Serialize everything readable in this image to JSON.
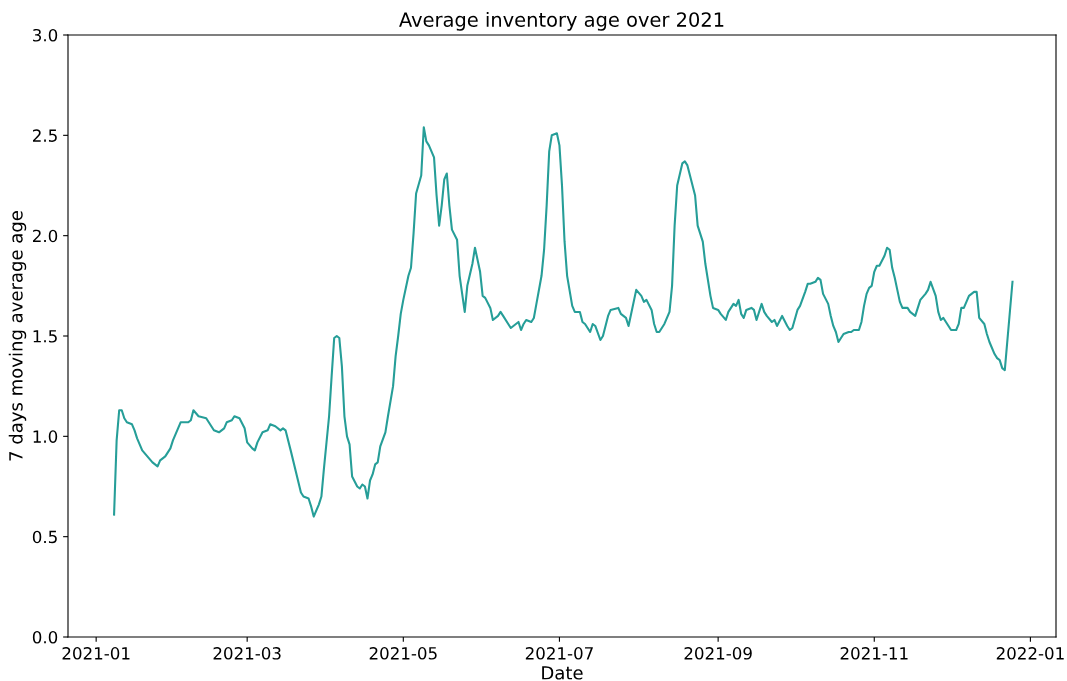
{
  "chart_data": {
    "type": "line",
    "title": "Average inventory age over 2021",
    "xlabel": "Date",
    "ylabel": "7 days moving average age",
    "x": [
      "2021-01-08",
      "2021-01-09",
      "2021-01-10",
      "2021-01-11",
      "2021-01-12",
      "2021-01-13",
      "2021-01-15",
      "2021-01-16",
      "2021-01-17",
      "2021-01-19",
      "2021-01-21",
      "2021-01-23",
      "2021-01-25",
      "2021-01-26",
      "2021-01-28",
      "2021-01-30",
      "2021-01-31",
      "2021-02-03",
      "2021-02-06",
      "2021-02-07",
      "2021-02-08",
      "2021-02-10",
      "2021-02-13",
      "2021-02-16",
      "2021-02-18",
      "2021-02-20",
      "2021-02-21",
      "2021-02-23",
      "2021-02-24",
      "2021-02-26",
      "2021-02-28",
      "2021-03-01",
      "2021-03-03",
      "2021-03-04",
      "2021-03-05",
      "2021-03-07",
      "2021-03-09",
      "2021-03-10",
      "2021-03-12",
      "2021-03-14",
      "2021-03-15",
      "2021-03-16",
      "2021-03-18",
      "2021-03-22",
      "2021-03-23",
      "2021-03-25",
      "2021-03-26",
      "2021-03-27",
      "2021-03-29",
      "2021-03-30",
      "2021-03-31",
      "2021-04-02",
      "2021-04-03",
      "2021-04-04",
      "2021-04-05",
      "2021-04-06",
      "2021-04-07",
      "2021-04-08",
      "2021-04-09",
      "2021-04-10",
      "2021-04-11",
      "2021-04-13",
      "2021-04-14",
      "2021-04-15",
      "2021-04-16",
      "2021-04-17",
      "2021-04-18",
      "2021-04-19",
      "2021-04-20",
      "2021-04-21",
      "2021-04-22",
      "2021-04-24",
      "2021-04-25",
      "2021-04-27",
      "2021-04-28",
      "2021-04-29",
      "2021-04-30",
      "2021-05-01",
      "2021-05-03",
      "2021-05-04",
      "2021-05-05",
      "2021-05-06",
      "2021-05-08",
      "2021-05-09",
      "2021-05-10",
      "2021-05-11",
      "2021-05-13",
      "2021-05-14",
      "2021-05-15",
      "2021-05-16",
      "2021-05-17",
      "2021-05-18",
      "2021-05-19",
      "2021-05-20",
      "2021-05-22",
      "2021-05-23",
      "2021-05-25",
      "2021-05-26",
      "2021-05-28",
      "2021-05-29",
      "2021-05-31",
      "2021-06-01",
      "2021-06-02",
      "2021-06-04",
      "2021-06-05",
      "2021-06-07",
      "2021-06-08",
      "2021-06-09",
      "2021-06-11",
      "2021-06-12",
      "2021-06-13",
      "2021-06-15",
      "2021-06-16",
      "2021-06-17",
      "2021-06-18",
      "2021-06-20",
      "2021-06-21",
      "2021-06-22",
      "2021-06-24",
      "2021-06-25",
      "2021-06-26",
      "2021-06-27",
      "2021-06-28",
      "2021-06-30",
      "2021-07-01",
      "2021-07-02",
      "2021-07-03",
      "2021-07-04",
      "2021-07-06",
      "2021-07-07",
      "2021-07-09",
      "2021-07-10",
      "2021-07-11",
      "2021-07-13",
      "2021-07-14",
      "2021-07-15",
      "2021-07-17",
      "2021-07-18",
      "2021-07-20",
      "2021-07-21",
      "2021-07-24",
      "2021-07-25",
      "2021-07-27",
      "2021-07-28",
      "2021-07-29",
      "2021-07-31",
      "2021-08-02",
      "2021-08-03",
      "2021-08-04",
      "2021-08-06",
      "2021-08-07",
      "2021-08-08",
      "2021-08-09",
      "2021-08-11",
      "2021-08-13",
      "2021-08-14",
      "2021-08-15",
      "2021-08-16",
      "2021-08-18",
      "2021-08-19",
      "2021-08-20",
      "2021-08-21",
      "2021-08-23",
      "2021-08-24",
      "2021-08-26",
      "2021-08-27",
      "2021-08-29",
      "2021-08-30",
      "2021-09-01",
      "2021-09-02",
      "2021-09-04",
      "2021-09-05",
      "2021-09-07",
      "2021-09-08",
      "2021-09-09",
      "2021-09-10",
      "2021-09-11",
      "2021-09-12",
      "2021-09-14",
      "2021-09-15",
      "2021-09-16",
      "2021-09-18",
      "2021-09-19",
      "2021-09-20",
      "2021-09-22",
      "2021-09-23",
      "2021-09-24",
      "2021-09-26",
      "2021-09-28",
      "2021-09-29",
      "2021-09-30",
      "2021-10-02",
      "2021-10-03",
      "2021-10-05",
      "2021-10-06",
      "2021-10-07",
      "2021-10-09",
      "2021-10-10",
      "2021-10-11",
      "2021-10-12",
      "2021-10-14",
      "2021-10-15",
      "2021-10-16",
      "2021-10-17",
      "2021-10-18",
      "2021-10-19",
      "2021-10-20",
      "2021-10-22",
      "2021-10-23",
      "2021-10-24",
      "2021-10-26",
      "2021-10-27",
      "2021-10-28",
      "2021-10-29",
      "2021-10-30",
      "2021-10-31",
      "2021-11-01",
      "2021-11-02",
      "2021-11-03",
      "2021-11-05",
      "2021-11-06",
      "2021-11-07",
      "2021-11-08",
      "2021-11-09",
      "2021-11-10",
      "2021-11-11",
      "2021-11-12",
      "2021-11-14",
      "2021-11-15",
      "2021-11-17",
      "2021-11-18",
      "2021-11-19",
      "2021-11-21",
      "2021-11-22",
      "2021-11-23",
      "2021-11-25",
      "2021-11-26",
      "2021-11-27",
      "2021-11-28",
      "2021-11-29",
      "2021-11-30",
      "2021-12-01",
      "2021-12-03",
      "2021-12-04",
      "2021-12-05",
      "2021-12-06",
      "2021-12-08",
      "2021-12-09",
      "2021-12-10",
      "2021-12-11",
      "2021-12-12",
      "2021-12-14",
      "2021-12-15",
      "2021-12-16",
      "2021-12-18",
      "2021-12-19",
      "2021-12-20",
      "2021-12-21",
      "2021-12-22",
      "2021-12-25"
    ],
    "series": [
      {
        "color": "#269e98",
        "values": [
          0.61,
          0.98,
          1.13,
          1.13,
          1.09,
          1.07,
          1.06,
          1.03,
          0.99,
          0.93,
          0.9,
          0.87,
          0.85,
          0.88,
          0.9,
          0.94,
          0.98,
          1.07,
          1.07,
          1.08,
          1.13,
          1.1,
          1.09,
          1.03,
          1.02,
          1.04,
          1.07,
          1.08,
          1.1,
          1.09,
          1.04,
          0.97,
          0.94,
          0.93,
          0.97,
          1.02,
          1.03,
          1.06,
          1.05,
          1.03,
          1.04,
          1.03,
          0.93,
          0.72,
          0.7,
          0.69,
          0.65,
          0.6,
          0.66,
          0.7,
          0.84,
          1.1,
          1.3,
          1.49,
          1.5,
          1.49,
          1.35,
          1.1,
          1.0,
          0.96,
          0.8,
          0.75,
          0.74,
          0.76,
          0.75,
          0.69,
          0.78,
          0.81,
          0.86,
          0.87,
          0.95,
          1.02,
          1.1,
          1.25,
          1.4,
          1.5,
          1.61,
          1.68,
          1.8,
          1.84,
          2.01,
          2.21,
          2.3,
          2.54,
          2.47,
          2.45,
          2.39,
          2.2,
          2.05,
          2.15,
          2.28,
          2.31,
          2.15,
          2.03,
          1.98,
          1.8,
          1.62,
          1.75,
          1.86,
          1.94,
          1.82,
          1.7,
          1.69,
          1.64,
          1.58,
          1.6,
          1.62,
          1.6,
          1.56,
          1.54,
          1.55,
          1.57,
          1.53,
          1.56,
          1.58,
          1.57,
          1.59,
          1.66,
          1.8,
          1.93,
          2.15,
          2.42,
          2.5,
          2.51,
          2.45,
          2.25,
          1.97,
          1.8,
          1.65,
          1.62,
          1.62,
          1.57,
          1.56,
          1.52,
          1.56,
          1.55,
          1.48,
          1.5,
          1.6,
          1.63,
          1.64,
          1.61,
          1.59,
          1.55,
          1.61,
          1.73,
          1.7,
          1.67,
          1.68,
          1.63,
          1.56,
          1.52,
          1.52,
          1.56,
          1.62,
          1.75,
          2.05,
          2.25,
          2.36,
          2.37,
          2.35,
          2.3,
          2.2,
          2.05,
          1.97,
          1.86,
          1.7,
          1.64,
          1.63,
          1.61,
          1.58,
          1.62,
          1.66,
          1.65,
          1.68,
          1.61,
          1.59,
          1.63,
          1.64,
          1.63,
          1.58,
          1.66,
          1.62,
          1.6,
          1.57,
          1.58,
          1.55,
          1.6,
          1.55,
          1.53,
          1.54,
          1.63,
          1.65,
          1.72,
          1.76,
          1.76,
          1.77,
          1.79,
          1.78,
          1.71,
          1.66,
          1.6,
          1.55,
          1.52,
          1.47,
          1.49,
          1.51,
          1.52,
          1.52,
          1.53,
          1.53,
          1.57,
          1.65,
          1.71,
          1.74,
          1.75,
          1.82,
          1.85,
          1.85,
          1.9,
          1.94,
          1.93,
          1.84,
          1.79,
          1.73,
          1.67,
          1.64,
          1.64,
          1.62,
          1.6,
          1.64,
          1.68,
          1.71,
          1.73,
          1.77,
          1.7,
          1.62,
          1.58,
          1.59,
          1.57,
          1.55,
          1.53,
          1.53,
          1.56,
          1.64,
          1.64,
          1.7,
          1.71,
          1.72,
          1.72,
          1.59,
          1.56,
          1.51,
          1.47,
          1.41,
          1.39,
          1.38,
          1.34,
          1.33,
          1.77
        ]
      }
    ],
    "xlim": [
      "2020-12-21",
      "2022-01-11"
    ],
    "xticks": [
      {
        "value": "2021-01-01",
        "label": "2021-01"
      },
      {
        "value": "2021-03-01",
        "label": "2021-03"
      },
      {
        "value": "2021-05-01",
        "label": "2021-05"
      },
      {
        "value": "2021-07-01",
        "label": "2021-07"
      },
      {
        "value": "2021-09-01",
        "label": "2021-09"
      },
      {
        "value": "2021-11-01",
        "label": "2021-11"
      },
      {
        "value": "2022-01-01",
        "label": "2022-01"
      }
    ],
    "ylim": [
      0,
      3
    ],
    "yticks": [
      {
        "value": 0,
        "label": "0.0"
      },
      0.5,
      {
        "value": 1,
        "label": "1.0"
      },
      1.5,
      {
        "value": 2,
        "label": "2.0"
      },
      2.5,
      {
        "value": 3,
        "label": "3.0"
      }
    ],
    "grid": false,
    "marker": "none",
    "line_style": "solid"
  }
}
